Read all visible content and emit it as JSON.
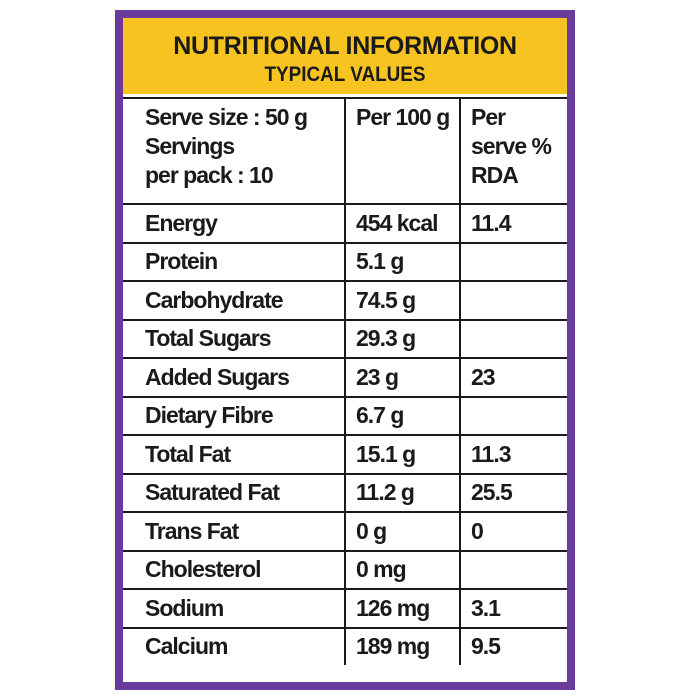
{
  "header": {
    "title": "NUTRITIONAL INFORMATION",
    "subtitle": "TYPICAL VALUES"
  },
  "table": {
    "columns": [
      [
        "Serve size : 50 g",
        "Servings",
        "per pack : 10"
      ],
      [
        "Per 100 g"
      ],
      [
        "Per",
        "serve %",
        "RDA"
      ]
    ],
    "rows": [
      [
        "Energy",
        "454 kcal",
        "11.4"
      ],
      [
        "Protein",
        "5.1 g",
        null
      ],
      [
        "Carbohydrate",
        "74.5 g",
        null
      ],
      [
        "Total Sugars",
        "29.3 g",
        null
      ],
      [
        "Added Sugars",
        "23 g",
        "23"
      ],
      [
        "Dietary Fibre",
        "6.7 g",
        null
      ],
      [
        "Total Fat",
        "15.1 g",
        "11.3"
      ],
      [
        "Saturated Fat",
        "11.2 g",
        "25.5"
      ],
      [
        "Trans Fat",
        "0 g",
        "0"
      ],
      [
        "Cholesterol",
        "0 mg",
        null
      ],
      [
        "Sodium",
        "126 mg",
        "3.1"
      ],
      [
        "Calcium",
        "189 mg",
        "9.5"
      ]
    ]
  }
}
